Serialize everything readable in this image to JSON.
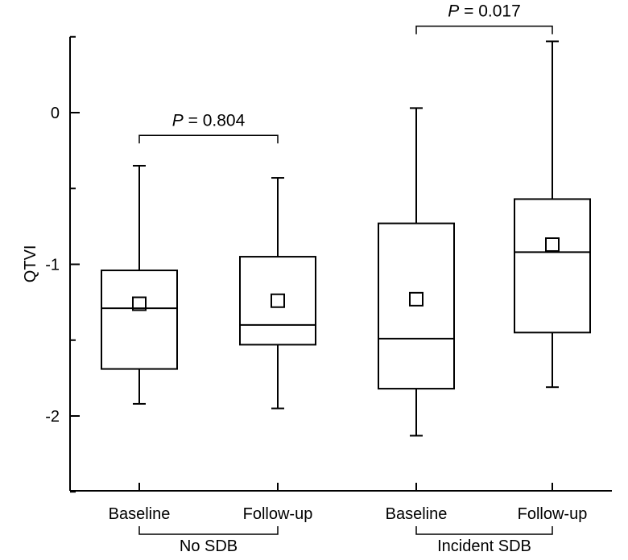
{
  "chart_data": {
    "type": "box",
    "ylabel": "QTVI",
    "ylim": [
      -2.5,
      0.5
    ],
    "y_ticks": [
      0,
      -1,
      -2
    ],
    "y_tick_labels": [
      "0",
      "-1",
      "-2"
    ],
    "grid": false,
    "categories": [
      "Baseline",
      "Follow-up",
      "Baseline",
      "Follow-up"
    ],
    "groups": [
      {
        "label": "No SDB",
        "members": [
          0,
          1
        ]
      },
      {
        "label": "Incident SDB",
        "members": [
          2,
          3
        ]
      }
    ],
    "boxes": [
      {
        "whisker_low": -1.92,
        "q1": -1.69,
        "median": -1.29,
        "q3": -1.04,
        "whisker_high": -0.35,
        "mean": -1.26
      },
      {
        "whisker_low": -1.95,
        "q1": -1.53,
        "median": -1.4,
        "q3": -0.95,
        "whisker_high": -0.43,
        "mean": -1.24
      },
      {
        "whisker_low": -2.13,
        "q1": -1.82,
        "median": -1.49,
        "q3": -0.73,
        "whisker_high": 0.03,
        "mean": -1.23
      },
      {
        "whisker_low": -1.81,
        "q1": -1.45,
        "median": -0.92,
        "q3": -0.57,
        "whisker_high": 0.47,
        "mean": -0.87
      }
    ],
    "comparisons": [
      {
        "between": [
          0,
          1
        ],
        "p_symbol": "P",
        "p_text": " = 0.804",
        "level": -0.15
      },
      {
        "between": [
          2,
          3
        ],
        "p_symbol": "P",
        "p_text": " = 0.017",
        "level": 0.57
      }
    ]
  }
}
